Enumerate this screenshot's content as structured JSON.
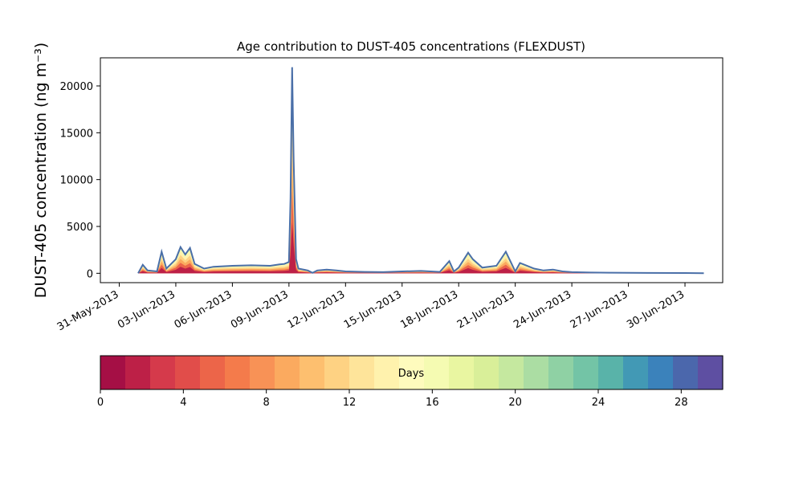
{
  "chart_data": {
    "type": "area",
    "title": "Age contribution to DUST-405 concentrations (FLEXDUST)",
    "ylabel": "DUST-405 concentration (ng m⁻³)",
    "xlabel": "",
    "x_axis": {
      "type": "date",
      "range": [
        "2013-05-30",
        "2013-07-02"
      ],
      "tick_labels": [
        "31-May-2013",
        "03-Jun-2013",
        "06-Jun-2013",
        "09-Jun-2013",
        "12-Jun-2013",
        "15-Jun-2013",
        "18-Jun-2013",
        "21-Jun-2013",
        "24-Jun-2013",
        "27-Jun-2013",
        "30-Jun-2013"
      ],
      "tick_dates": [
        "2013-05-31",
        "2013-06-03",
        "2013-06-06",
        "2013-06-09",
        "2013-06-12",
        "2013-06-15",
        "2013-06-18",
        "2013-06-21",
        "2013-06-24",
        "2013-06-27",
        "2013-06-30"
      ]
    },
    "y_axis": {
      "range": [
        -1000,
        23000
      ],
      "ticks": [
        0,
        5000,
        10000,
        15000,
        20000
      ],
      "tick_labels": [
        "0",
        "5000",
        "10000",
        "15000",
        "20000"
      ]
    },
    "total_series": {
      "color": "#4a6fa8",
      "x": [
        "2013-06-01",
        "2013-06-01 06:00",
        "2013-06-01 12:00",
        "2013-06-02 00:00",
        "2013-06-02 06:00",
        "2013-06-02 12:00",
        "2013-06-03 00:00",
        "2013-06-03 06:00",
        "2013-06-03 12:00",
        "2013-06-03 18:00",
        "2013-06-04 00:00",
        "2013-06-04 12:00",
        "2013-06-05 00:00",
        "2013-06-06 00:00",
        "2013-06-07 00:00",
        "2013-06-08 00:00",
        "2013-06-08 12:00",
        "2013-06-08 18:00",
        "2013-06-09 00:00",
        "2013-06-09 02:00",
        "2013-06-09 04:00",
        "2013-06-09 06:00",
        "2013-06-09 09:00",
        "2013-06-09 12:00",
        "2013-06-10 00:00",
        "2013-06-10 06:00",
        "2013-06-10 12:00",
        "2013-06-11 00:00",
        "2013-06-11 12:00",
        "2013-06-12 00:00",
        "2013-06-13 00:00",
        "2013-06-14 00:00",
        "2013-06-15 00:00",
        "2013-06-16 00:00",
        "2013-06-17 00:00",
        "2013-06-17 12:00",
        "2013-06-17 18:00",
        "2013-06-18 00:00",
        "2013-06-18 12:00",
        "2013-06-18 18:00",
        "2013-06-19 06:00",
        "2013-06-20 00:00",
        "2013-06-20 12:00",
        "2013-06-21 00:00",
        "2013-06-21 06:00",
        "2013-06-21 12:00",
        "2013-06-22 00:00",
        "2013-06-22 12:00",
        "2013-06-23 00:00",
        "2013-06-23 12:00",
        "2013-06-24 00:00",
        "2013-06-25 00:00",
        "2013-06-26 00:00",
        "2013-06-28 00:00",
        "2013-06-30 00:00",
        "2013-07-01 00:00"
      ],
      "y": [
        0,
        900,
        300,
        200,
        2300,
        500,
        1500,
        2800,
        2000,
        2700,
        1000,
        500,
        700,
        800,
        850,
        800,
        950,
        1000,
        1200,
        8000,
        22000,
        12000,
        1500,
        500,
        300,
        50,
        300,
        400,
        300,
        200,
        150,
        120,
        200,
        250,
        150,
        1300,
        200,
        600,
        2200,
        1500,
        600,
        800,
        2300,
        200,
        1100,
        900,
        500,
        300,
        400,
        200,
        120,
        80,
        60,
        40,
        30,
        0
      ]
    },
    "age_colorbar": {
      "label": "Days",
      "range": [
        0,
        30
      ],
      "ticks": [
        0,
        4,
        8,
        12,
        16,
        20,
        24,
        28
      ],
      "tick_labels": [
        "0",
        "4",
        "8",
        "12",
        "16",
        "20",
        "24",
        "28"
      ],
      "colors": [
        "#a50f45",
        "#bd2047",
        "#d53a4b",
        "#e14d4a",
        "#ec6549",
        "#f47b4b",
        "#f89256",
        "#fbaa5f",
        "#fdbf6f",
        "#fed283",
        "#fee49a",
        "#fff2ad",
        "#fefbbd",
        "#f5fbb2",
        "#e9f6a1",
        "#d9ef99",
        "#c5e89f",
        "#abdda3",
        "#8fd1a4",
        "#73c4a6",
        "#59b3a9",
        "#4299b5",
        "#3b82bb",
        "#4b67ac",
        "#5e4fa2"
      ]
    }
  }
}
